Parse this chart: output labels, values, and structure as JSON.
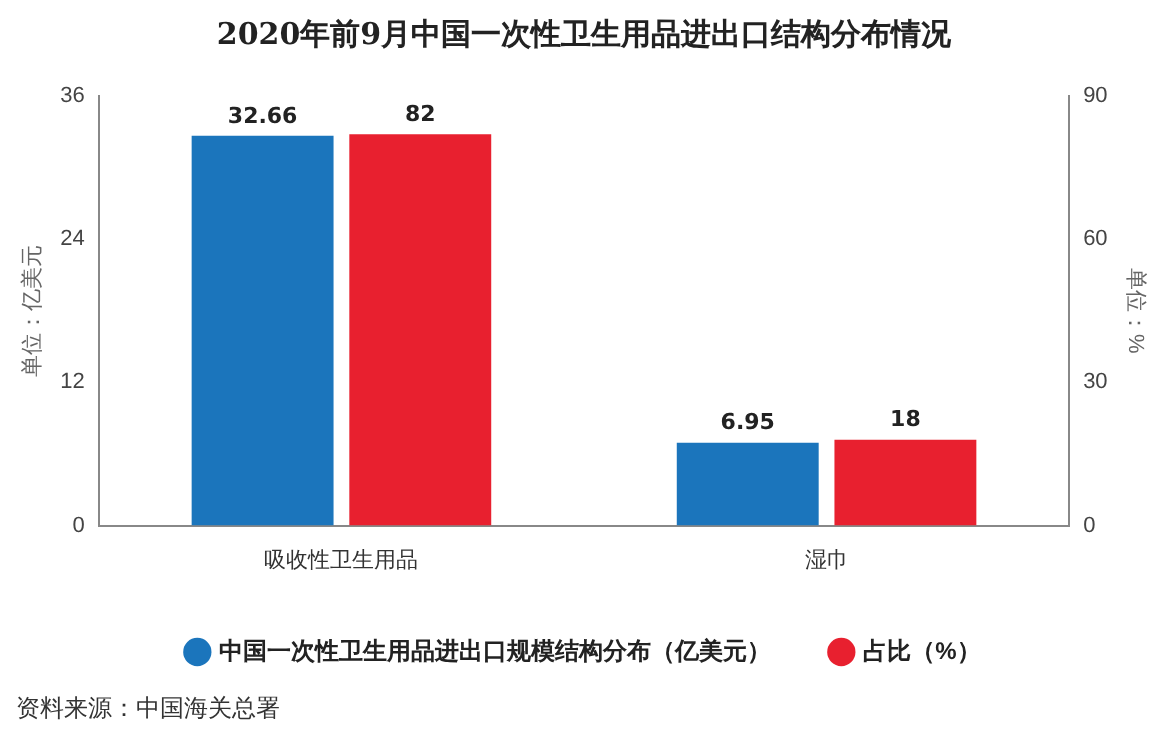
{
  "chart_data": {
    "type": "bar",
    "title": "2020年前9月中国一次性卫生用品进出口结构分布情况",
    "categories": [
      "吸收性卫生用品",
      "湿巾"
    ],
    "series": [
      {
        "name": "中国一次性卫生用品进出口规模结构分布（亿美元）",
        "color": "#1b75bc",
        "values": [
          32.66,
          6.95
        ]
      },
      {
        "name": "占比（%）",
        "color": "#e8202f",
        "values": [
          82,
          18
        ],
        "axis": "y2"
      }
    ],
    "ylabel": "单位：亿美元",
    "y2label": "单位：%",
    "ylim": [
      0,
      36
    ],
    "yticks": [
      0,
      12,
      24,
      36
    ],
    "y2lim": [
      0,
      90
    ],
    "y2ticks": [
      0,
      30,
      60,
      90
    ],
    "data_labels": true,
    "legend": "bottom",
    "grid": false,
    "annotations": [
      "资料来源：中国海关总署"
    ]
  }
}
